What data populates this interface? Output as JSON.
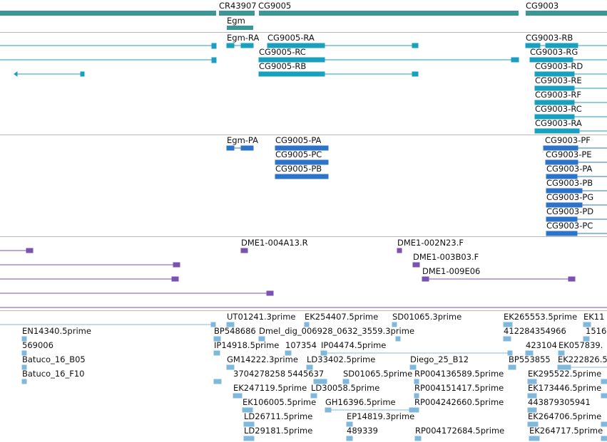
{
  "colors": {
    "gene": "#3c9696",
    "transcript": "#1aa0bf",
    "protein": "#2d73c8",
    "clone": "#7a52b0",
    "est": "#80b8dc",
    "separator": "#b9b9b9"
  },
  "tracks": {
    "gene": {
      "labels": [
        "CR43907",
        "CG9005",
        "CG9003",
        "Egm"
      ]
    },
    "transcripts": {
      "labels": [
        "Egm-RA",
        "CG9005-RA",
        "CG9003-RB",
        "CG9005-RC",
        "CG9003-RG",
        "CG9005-RB",
        "CG9003-RD",
        "CG9003-RE",
        "CG9003-RF",
        "CG9003-RC",
        "CG9003-RA"
      ]
    },
    "proteins": {
      "labels": [
        "Egm-PA",
        "CG9005-PA",
        "CG9003-PF",
        "CG9005-PC",
        "CG9003-PE",
        "CG9005-PB",
        "CG9003-PA",
        "CG9003-PB",
        "CG9003-PG",
        "CG9003-PD",
        "CG9003-PC"
      ]
    },
    "clones": {
      "labels": [
        "DME1-004A13.R",
        "DME1-002N23.F",
        "DME1-003B03.F",
        "DME1-009E06"
      ]
    },
    "ests": {
      "labels": [
        "UT01241.3prime",
        "EK254407.5prime",
        "SD01065.3prime",
        "EK265553.5prime",
        "EK11",
        "EN14340.5prime",
        "BP548686",
        "Dmel_dig_006928_0632_3559.3prime",
        "412284354966",
        "1516",
        "569006",
        "IP14918.5prime",
        "107354",
        "IP04474.5prime",
        "423104",
        "EK057839.",
        "Batuco_16_B05",
        "GM14222.3prime",
        "LD33402.5prime",
        "Diego_25_B12",
        "BP553855",
        "EK222826.5",
        "Batuco_16_F10",
        "3704278258",
        "5445637",
        "SD01065.5prime",
        "RP004136589.5prime",
        "EK295522.5prime",
        "EK247119.5prime",
        "LD30058.5prime",
        "RP004151417.5prime",
        "EK173446.5prime",
        "EK106005.5prime",
        "GH16396.5prime",
        "RP004242660.5prime",
        "443879305941",
        "LD26711.5prime",
        "EP14819.3prime",
        "EK264706.5prime",
        "LD29181.5prime",
        "489339",
        "RP004172684.5prime",
        "EK264717.5prime"
      ]
    }
  }
}
